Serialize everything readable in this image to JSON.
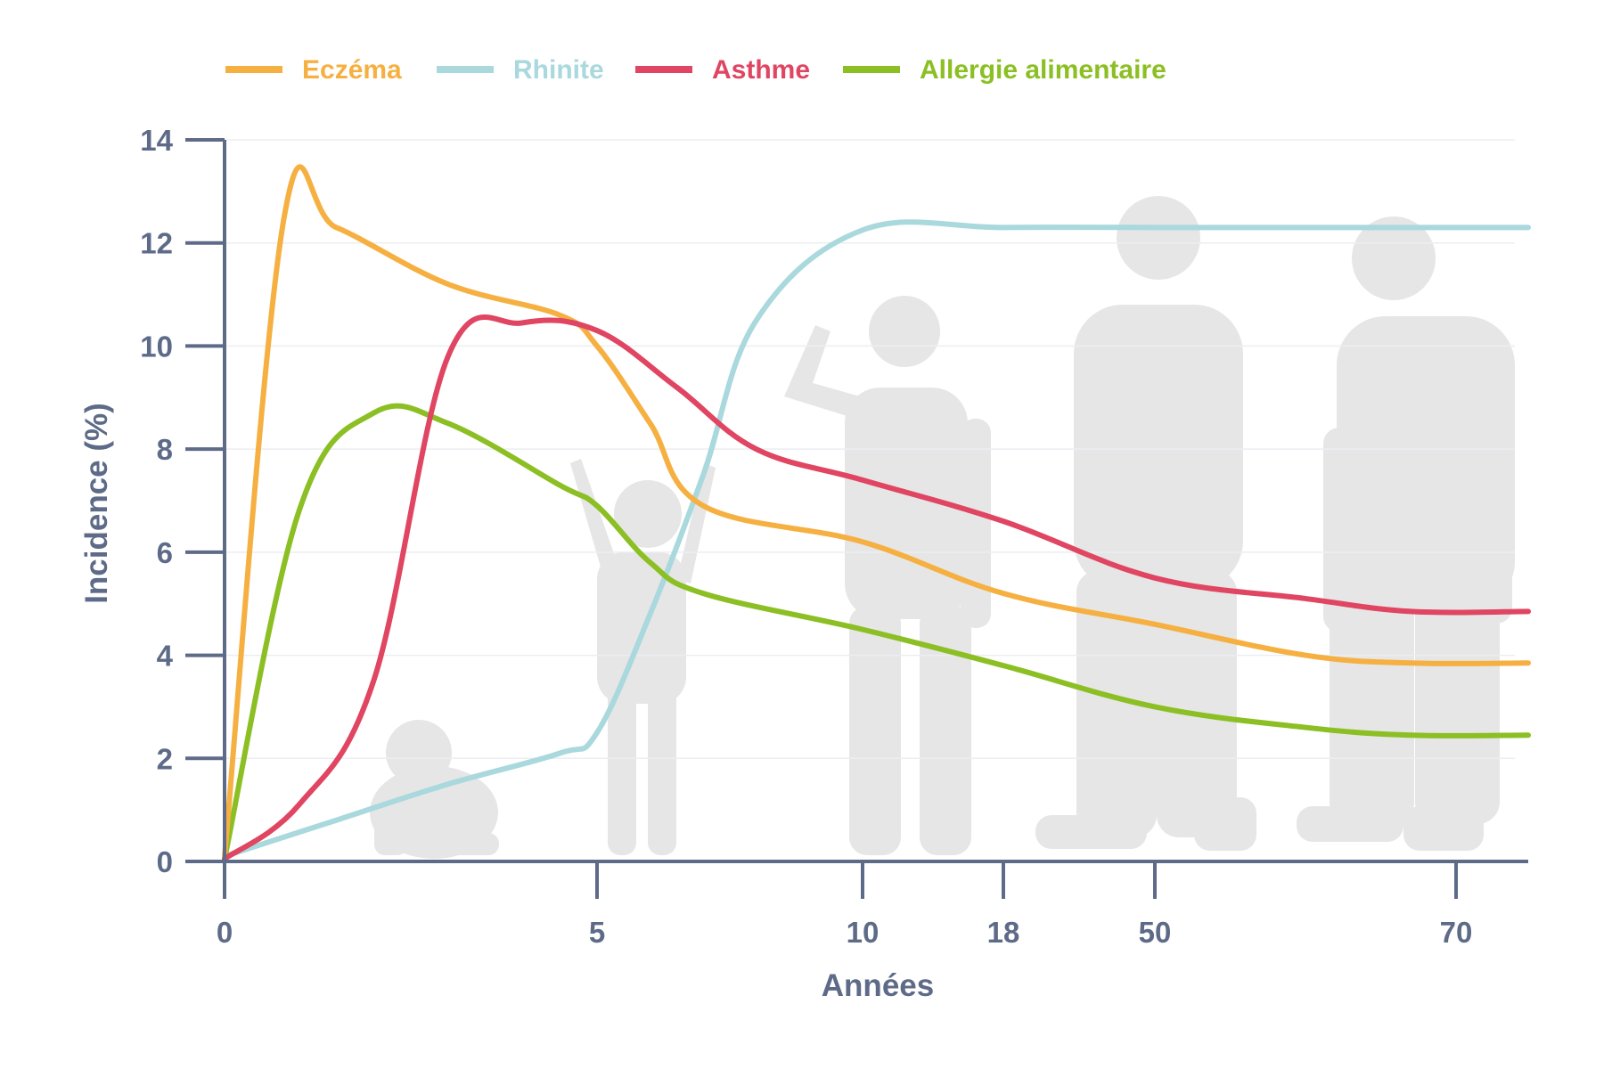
{
  "chart_data": {
    "type": "line",
    "title": "",
    "xlabel": "Années",
    "ylabel": "Incidence (%)",
    "ylim": [
      0,
      14
    ],
    "grid": true,
    "legend_position": "top-left",
    "x_axis_scale": "non-linear (age stages)",
    "x_ticks": [
      "0",
      "5",
      "10",
      "18",
      "50",
      "70"
    ],
    "y_ticks": [
      0,
      2,
      4,
      6,
      8,
      10,
      12,
      14
    ],
    "colors": {
      "axis": "#5e6b88",
      "grid": "#eceef2",
      "silhouette": "#e6e6e6",
      "eczema": "#f5b041",
      "rhinite": "#a9d8dd",
      "asthme": "#e04562",
      "allergie": "#8bbf23"
    },
    "background_illustration": "human silhouettes: baby, child, teenager, adult, elderly",
    "series": [
      {
        "name": "Eczéma",
        "color": "#f5b041",
        "points": [
          [
            0,
            0.1
          ],
          [
            0.8,
            12.5
          ],
          [
            1.5,
            12.3
          ],
          [
            3,
            11.2
          ],
          [
            4.5,
            10.6
          ],
          [
            5,
            10.0
          ],
          [
            6,
            8.5
          ],
          [
            7,
            6.9
          ],
          [
            10,
            6.2
          ],
          [
            18,
            5.2
          ],
          [
            50,
            4.6
          ],
          [
            60,
            4.0
          ],
          [
            67,
            3.85
          ],
          [
            76,
            3.85
          ]
        ]
      },
      {
        "name": "Rhinite",
        "color": "#a9d8dd",
        "points": [
          [
            0,
            0.1
          ],
          [
            1.5,
            0.8
          ],
          [
            3,
            1.5
          ],
          [
            4.5,
            2.1
          ],
          [
            5,
            2.5
          ],
          [
            6,
            4.8
          ],
          [
            7,
            7.5
          ],
          [
            8,
            10.5
          ],
          [
            10,
            12.25
          ],
          [
            18,
            12.3
          ],
          [
            50,
            12.3
          ],
          [
            76,
            12.3
          ]
        ]
      },
      {
        "name": "Asthme",
        "color": "#e04562",
        "points": [
          [
            0,
            0.05
          ],
          [
            1,
            1.1
          ],
          [
            2,
            3.5
          ],
          [
            3,
            9.8
          ],
          [
            4,
            10.45
          ],
          [
            5,
            10.3
          ],
          [
            6.5,
            9.2
          ],
          [
            8,
            8.0
          ],
          [
            10,
            7.4
          ],
          [
            18,
            6.6
          ],
          [
            50,
            5.5
          ],
          [
            60,
            5.1
          ],
          [
            67,
            4.85
          ],
          [
            76,
            4.85
          ]
        ]
      },
      {
        "name": "Allergie alimentaire",
        "color": "#8bbf23",
        "points": [
          [
            0,
            0.05
          ],
          [
            1,
            6.8
          ],
          [
            2,
            8.7
          ],
          [
            3,
            8.5
          ],
          [
            4.5,
            7.3
          ],
          [
            5,
            6.9
          ],
          [
            6,
            5.8
          ],
          [
            7,
            5.2
          ],
          [
            10,
            4.5
          ],
          [
            18,
            3.8
          ],
          [
            50,
            3.0
          ],
          [
            60,
            2.6
          ],
          [
            67,
            2.45
          ],
          [
            76,
            2.45
          ]
        ]
      }
    ]
  }
}
